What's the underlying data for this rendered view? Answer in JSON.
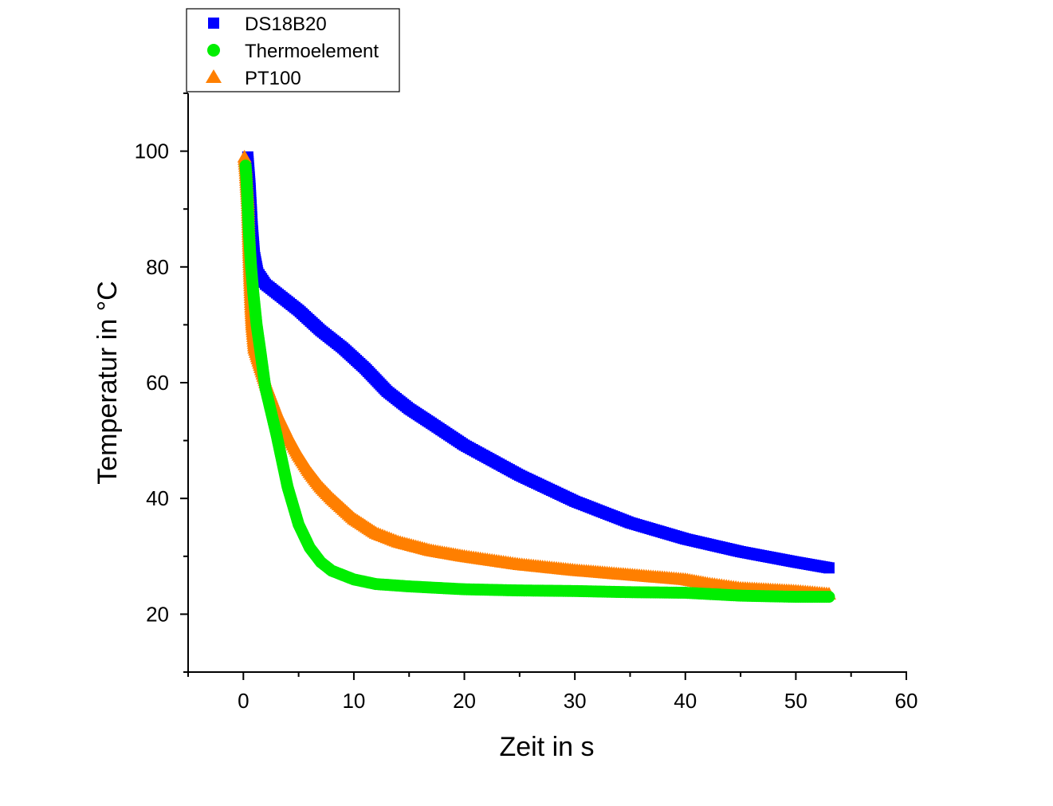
{
  "chart_data": {
    "type": "scatter",
    "xlabel": "Zeit in s",
    "ylabel": "Temperatur in °C",
    "xlim": [
      -5,
      60
    ],
    "ylim": [
      10,
      110
    ],
    "xticks": [
      0,
      10,
      20,
      30,
      40,
      50,
      60
    ],
    "yticks": [
      20,
      40,
      60,
      80,
      100
    ],
    "grid": false,
    "legend_position": "top-left, above plot",
    "series": [
      {
        "name": "DS18B20",
        "marker": "square",
        "color": "#0000FF",
        "x": [
          0.4,
          0.6,
          0.8,
          1,
          1.3,
          2,
          3,
          5,
          7,
          9,
          11,
          13,
          15,
          17,
          20,
          25,
          30,
          35,
          40,
          45,
          50,
          53
        ],
        "y": [
          99,
          94,
          87,
          82,
          79,
          77,
          75.5,
          72.5,
          69,
          66,
          62.5,
          58.5,
          55.5,
          53,
          49.2,
          44,
          39.5,
          35.8,
          33,
          30.8,
          29,
          28
        ]
      },
      {
        "name": "Thermoelement",
        "marker": "circle",
        "color": "#00EE00",
        "x": [
          0.2,
          0.3,
          0.5,
          0.7,
          0.9,
          1.2,
          1.5,
          2,
          2.5,
          3,
          4,
          5,
          6,
          7,
          8,
          10,
          12,
          15,
          20,
          25,
          30,
          35,
          40,
          45,
          50,
          53
        ],
        "y": [
          97.5,
          94.5,
          86,
          80,
          75.5,
          70,
          66,
          59,
          55,
          51,
          42,
          35.5,
          31.5,
          29,
          27.5,
          26,
          25.2,
          24.8,
          24.3,
          24.1,
          24,
          23.8,
          23.7,
          23.2,
          23,
          23
        ]
      },
      {
        "name": "PT100",
        "marker": "triangle",
        "color": "#FF7F00",
        "x": [
          0.1,
          0.2,
          0.4,
          0.5,
          0.6,
          0.7,
          0.8,
          1,
          1.5,
          2,
          3,
          4,
          5,
          6,
          7,
          8,
          10,
          12,
          14,
          17,
          20,
          25,
          30,
          35,
          40,
          42,
          45,
          50,
          53
        ],
        "y": [
          99,
          97,
          91,
          84,
          78,
          73.5,
          70,
          66,
          63,
          60,
          55,
          51,
          47.5,
          44.5,
          42,
          40,
          36.5,
          34,
          32.5,
          31,
          30,
          28.6,
          27.6,
          26.8,
          26,
          25.3,
          24.5,
          24,
          23.5
        ]
      }
    ]
  }
}
